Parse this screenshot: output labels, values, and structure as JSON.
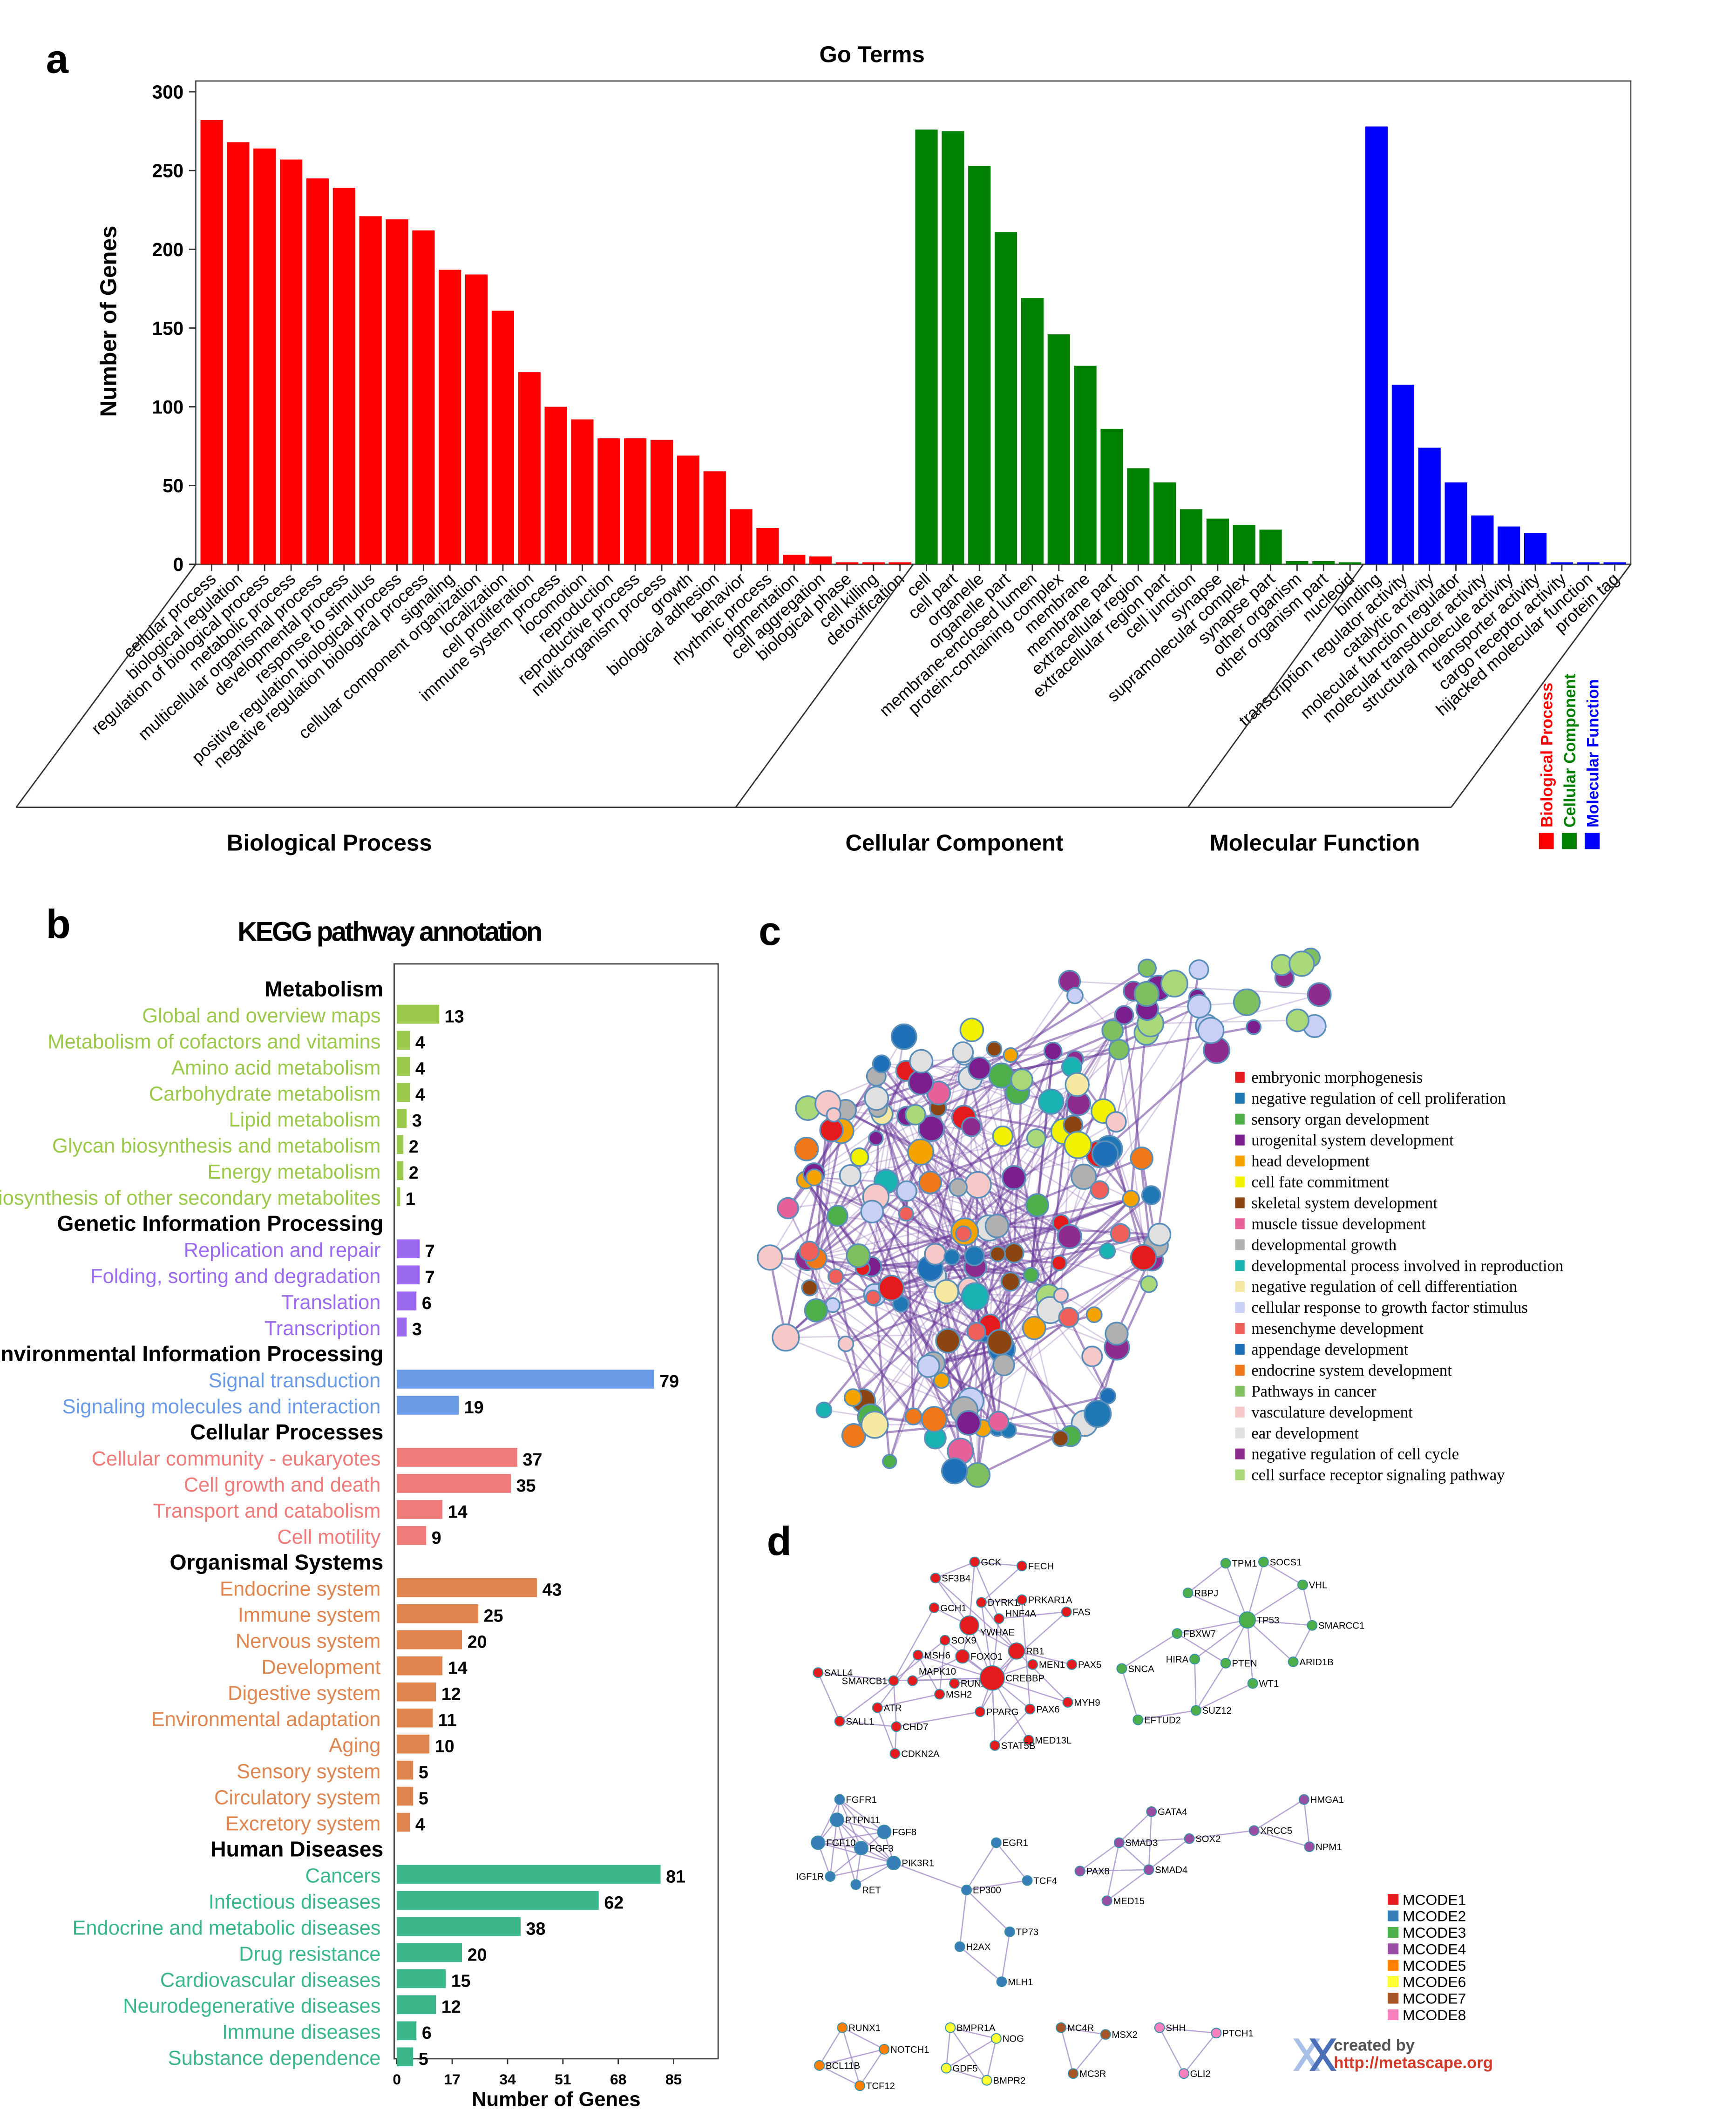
{
  "panel_labels": {
    "a": "a",
    "b": "b",
    "c": "c",
    "d": "d"
  },
  "chart_data": [
    {
      "type": "bar",
      "title": "Go Terms",
      "ylabel": "Number of Genes",
      "ylim": [
        0,
        300
      ],
      "yticks": [
        0,
        50,
        100,
        150,
        200,
        250,
        300
      ],
      "grid": false,
      "legend_placement": "bottom-right",
      "legend": [
        "Biological  Process",
        "Cellular  Component",
        "Molecular  Function"
      ],
      "colors": {
        "Biological  Process": "#ff0000",
        "Cellular  Component": "#008000",
        "Molecular  Function": "#0000ff"
      },
      "groups": [
        {
          "name": "Biological  Process",
          "categories": [
            "cellular process",
            "biological regulation",
            "regulation of biological process",
            "metabolic process",
            "multicellular organismal process",
            "developmental process",
            "response to stimulus",
            "positive regulation biological process",
            "negative regulation biological process",
            "signaling",
            "cellular component organization",
            "localization",
            "cell proliferation",
            "immune system process",
            "locomotion",
            "reproduction",
            "reproductive process",
            "multi-organism process",
            "growth",
            "biological adhesion",
            "behavior",
            "rhythmic process",
            "pigmentation",
            "cell aggregation",
            "biological phase",
            "cell killing",
            "detoxification"
          ],
          "values": [
            282,
            268,
            264,
            257,
            245,
            239,
            221,
            219,
            212,
            187,
            184,
            161,
            122,
            100,
            92,
            80,
            80,
            79,
            69,
            59,
            35,
            23,
            6,
            5,
            1,
            1,
            1
          ]
        },
        {
          "name": "Cellular  Component",
          "categories": [
            "cell",
            "cell part",
            "organelle",
            "organelle part",
            "membrane-enclosed lumen",
            "protein-containing complex",
            "membrane",
            "membrane part",
            "extracellular region",
            "extracellular region part",
            "cell junction",
            "synapse",
            "supramolecular complex",
            "synapse part",
            "other organism",
            "other organism part",
            "nucleoid"
          ],
          "values": [
            276,
            275,
            253,
            211,
            169,
            146,
            126,
            86,
            61,
            52,
            35,
            29,
            25,
            22,
            2,
            2,
            1
          ]
        },
        {
          "name": "Molecular  Function",
          "categories": [
            "binding",
            "transcription regulator activity",
            "catalytic activity",
            "molecular function regulator",
            "molecular transducer activity",
            "structural molecule activity",
            "transporter activity",
            "cargo receptor activity",
            "hijacked molecular function",
            "protein tag"
          ],
          "values": [
            278,
            114,
            74,
            52,
            31,
            24,
            20,
            1,
            1,
            1
          ]
        }
      ]
    },
    {
      "type": "bar",
      "orientation": "horizontal",
      "title": "KEGG pathway annotation",
      "xlabel": "Number of Genes",
      "xlim": [
        0,
        85
      ],
      "xticks": [
        0,
        17,
        34,
        51,
        68,
        85
      ],
      "groups": [
        {
          "name": "Metabolism",
          "color": "#9cc94c",
          "categories": [
            "Global and overview maps",
            "Metabolism of cofactors and vitamins",
            "Amino acid metabolism",
            "Carbohydrate metabolism",
            "Lipid metabolism",
            "Glycan biosynthesis and metabolism",
            "Energy metabolism",
            "Biosynthesis of other secondary metabolites"
          ],
          "values": [
            13,
            4,
            4,
            4,
            3,
            2,
            2,
            1
          ]
        },
        {
          "name": "Genetic Information Processing",
          "color": "#9b6bef",
          "categories": [
            "Replication and repair",
            "Folding, sorting and degradation",
            "Translation",
            "Transcription"
          ],
          "values": [
            7,
            7,
            6,
            3
          ]
        },
        {
          "name": "Environmental Information Processing",
          "color": "#6b9be6",
          "categories": [
            "Signal transduction",
            "Signaling molecules and interaction"
          ],
          "values": [
            79,
            19
          ]
        },
        {
          "name": "Cellular Processes",
          "color": "#f07b7b",
          "categories": [
            "Cellular community - eukaryotes",
            "Cell growth and death",
            "Transport and catabolism",
            "Cell motility"
          ],
          "values": [
            37,
            35,
            14,
            9
          ]
        },
        {
          "name": "Organismal Systems",
          "color": "#df8650",
          "categories": [
            "Endocrine system",
            "Immune system",
            "Nervous system",
            "Development",
            "Digestive system",
            "Environmental adaptation",
            "Aging",
            "Sensory system",
            "Circulatory system",
            "Excretory system"
          ],
          "values": [
            43,
            25,
            20,
            14,
            12,
            11,
            10,
            5,
            5,
            4
          ]
        },
        {
          "name": "Human Diseases",
          "color": "#3bb78a",
          "categories": [
            "Cancers",
            "Infectious diseases",
            "Endocrine and metabolic diseases",
            "Drug resistance",
            "Cardiovascular diseases",
            "Neurodegenerative diseases",
            "Immune diseases",
            "Substance dependence"
          ],
          "values": [
            81,
            62,
            38,
            20,
            15,
            12,
            6,
            5
          ]
        }
      ]
    }
  ],
  "network_c": {
    "legend": [
      {
        "label": "embryonic morphogenesis",
        "color": "#e41a1c"
      },
      {
        "label": "negative regulation of cell proliferation",
        "color": "#1f78b4"
      },
      {
        "label": "sensory organ development",
        "color": "#4daf4a"
      },
      {
        "label": "urogenital system development",
        "color": "#7b1f8f"
      },
      {
        "label": "head development",
        "color": "#f5a300"
      },
      {
        "label": "cell fate commitment",
        "color": "#f2f200"
      },
      {
        "label": "skeletal system development",
        "color": "#8b4513"
      },
      {
        "label": "muscle tissue development",
        "color": "#e7609a"
      },
      {
        "label": "developmental growth",
        "color": "#b0b0b0"
      },
      {
        "label": "developmental process involved in reproduction",
        "color": "#17b3b3"
      },
      {
        "label": "negative regulation of cell differentiation",
        "color": "#f5e8a0"
      },
      {
        "label": "cellular response to growth factor stimulus",
        "color": "#c8d0f5"
      },
      {
        "label": "mesenchyme development",
        "color": "#f0605a"
      },
      {
        "label": "appendage development",
        "color": "#1e70b8"
      },
      {
        "label": "endocrine system development",
        "color": "#f07818"
      },
      {
        "label": "Pathways in cancer",
        "color": "#7fbf5f"
      },
      {
        "label": "vasculature development",
        "color": "#f6c8c8"
      },
      {
        "label": "ear development",
        "color": "#e0e0e0"
      },
      {
        "label": "negative regulation of cell cycle",
        "color": "#8e2c8e"
      },
      {
        "label": "cell surface receptor signaling pathway",
        "color": "#a8d878"
      }
    ]
  },
  "network_d": {
    "clusters": [
      {
        "name": "MCODE1",
        "color": "#e41a1c",
        "genes": [
          "GCK",
          "FECH",
          "SF3B4",
          "DYRK1A",
          "PRKAR1A",
          "GCH1",
          "HNF4A",
          "FAS",
          "YWHAE",
          "SOX9",
          "RB1",
          "FOXO1",
          "MSH6",
          "MEN1",
          "PAX5",
          "SALL4",
          "SMARCB1",
          "MAPK10",
          "RUNX2",
          "CREBBP",
          "MSH2",
          "MYH9",
          "ATR",
          "PPARG",
          "PAX6",
          "SALL1",
          "CHD7",
          "MED13L",
          "STAT5B",
          "CDKN2A"
        ]
      },
      {
        "name": "MCODE2",
        "color": "#377eb8",
        "genes": [
          "FGFR1",
          "PTPN11",
          "FGF8",
          "FGF10",
          "FGF3",
          "PIK3R1",
          "IGF1R",
          "RET",
          "EGR1",
          "TCF4",
          "EP300",
          "TP73",
          "H2AX",
          "MLH1"
        ]
      },
      {
        "name": "MCODE3",
        "color": "#4daf4a",
        "genes": [
          "TPM1",
          "SOCS1",
          "VHL",
          "RBPJ",
          "TP53",
          "SMARCC1",
          "FBXW7",
          "HIRA",
          "PTEN",
          "ARID1B",
          "SNCA",
          "WT1",
          "SUZ12",
          "EFTUD2"
        ]
      },
      {
        "name": "MCODE4",
        "color": "#984ea3",
        "genes": [
          "GATA4",
          "HMGA1",
          "SMAD3",
          "SOX2",
          "XRCC5",
          "NPM1",
          "PAX8",
          "SMAD4",
          "MED15"
        ]
      },
      {
        "name": "MCODE5",
        "color": "#ff7f00",
        "genes": [
          "RUNX1",
          "NOTCH1",
          "BCL11B",
          "TCF12"
        ]
      },
      {
        "name": "MCODE6",
        "color": "#ffff33",
        "genes": [
          "BMPR1A",
          "NOG",
          "GDF5",
          "BMPR2"
        ]
      },
      {
        "name": "MCODE7",
        "color": "#a65628",
        "genes": [
          "MC4R",
          "MSX2",
          "MC3R"
        ]
      },
      {
        "name": "MCODE8",
        "color": "#f781bf",
        "genes": [
          "SHH",
          "PTCH1",
          "GLI2"
        ]
      }
    ],
    "credit": {
      "line1": "created by",
      "line2": "http://metascape.org"
    }
  }
}
